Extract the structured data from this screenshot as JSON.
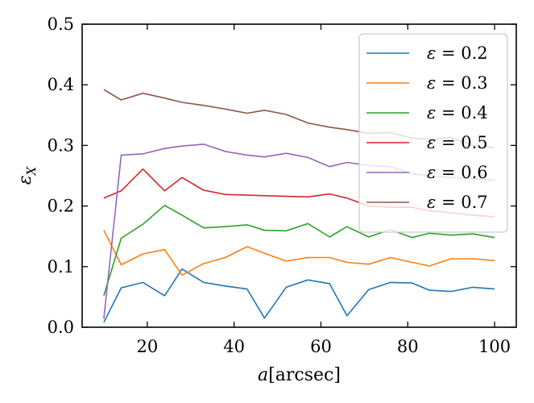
{
  "chart_data": {
    "type": "line",
    "title": "",
    "xlabel": "a [arcsec]",
    "xlabel_var": "a",
    "xlabel_unit": "[arcsec]",
    "ylabel": "εX",
    "ylabel_sym": "ε",
    "ylabel_sub": "X",
    "xlim": [
      5,
      105
    ],
    "ylim": [
      0.0,
      0.5
    ],
    "xticks": [
      20,
      40,
      60,
      80,
      100
    ],
    "xtick_labels": [
      "20",
      "40",
      "60",
      "80",
      "100"
    ],
    "yticks": [
      0.0,
      0.1,
      0.2,
      0.3,
      0.4,
      0.5
    ],
    "ytick_labels": [
      "0.0",
      "0.1",
      "0.2",
      "0.3",
      "0.4",
      "0.5"
    ],
    "grid": false,
    "legend_position": "upper-right",
    "x": [
      10,
      14,
      19,
      24,
      28,
      33,
      38,
      43,
      47,
      52,
      57,
      62,
      66,
      71,
      76,
      81,
      85,
      90,
      95,
      100
    ],
    "series": [
      {
        "name": "ε = 0.2",
        "symbol": "ε",
        "eq": " = 0.2",
        "color": "#1f77b4",
        "values": [
          0.008,
          0.065,
          0.074,
          0.052,
          0.096,
          0.074,
          0.068,
          0.063,
          0.015,
          0.066,
          0.078,
          0.072,
          0.019,
          0.062,
          0.074,
          0.073,
          0.061,
          0.059,
          0.066,
          0.063
        ]
      },
      {
        "name": "ε = 0.3",
        "symbol": "ε",
        "eq": " = 0.3",
        "color": "#ff7f0e",
        "values": [
          0.16,
          0.103,
          0.121,
          0.128,
          0.086,
          0.105,
          0.115,
          0.133,
          0.122,
          0.109,
          0.115,
          0.115,
          0.107,
          0.104,
          0.115,
          0.107,
          0.101,
          0.113,
          0.113,
          0.11
        ]
      },
      {
        "name": "ε = 0.4",
        "symbol": "ε",
        "eq": " = 0.4",
        "color": "#2ca02c",
        "values": [
          0.052,
          0.147,
          0.17,
          0.201,
          0.185,
          0.164,
          0.166,
          0.169,
          0.16,
          0.159,
          0.171,
          0.149,
          0.166,
          0.149,
          0.161,
          0.148,
          0.155,
          0.152,
          0.154,
          0.148
        ]
      },
      {
        "name": "ε = 0.5",
        "symbol": "ε",
        "eq": " = 0.5",
        "color": "#d62728",
        "values": [
          0.213,
          0.225,
          0.261,
          0.225,
          0.247,
          0.226,
          0.219,
          0.218,
          0.217,
          0.216,
          0.215,
          0.22,
          0.213,
          0.2,
          0.198,
          0.198,
          0.192,
          0.189,
          0.185,
          0.182
        ]
      },
      {
        "name": "ε = 0.6",
        "symbol": "ε",
        "eq": " = 0.6",
        "color": "#9467bd",
        "values": [
          0.014,
          0.284,
          0.286,
          0.295,
          0.299,
          0.302,
          0.29,
          0.284,
          0.281,
          0.287,
          0.28,
          0.265,
          0.272,
          0.267,
          0.265,
          0.253,
          0.25,
          0.247,
          0.245,
          0.243
        ]
      },
      {
        "name": "ε = 0.7",
        "symbol": "ε",
        "eq": " = 0.7",
        "color": "#8c564b",
        "values": [
          0.392,
          0.375,
          0.386,
          0.378,
          0.371,
          0.366,
          0.36,
          0.353,
          0.358,
          0.351,
          0.337,
          0.33,
          0.326,
          0.32,
          0.321,
          0.312,
          0.31,
          0.313,
          0.3,
          0.296
        ]
      }
    ]
  }
}
